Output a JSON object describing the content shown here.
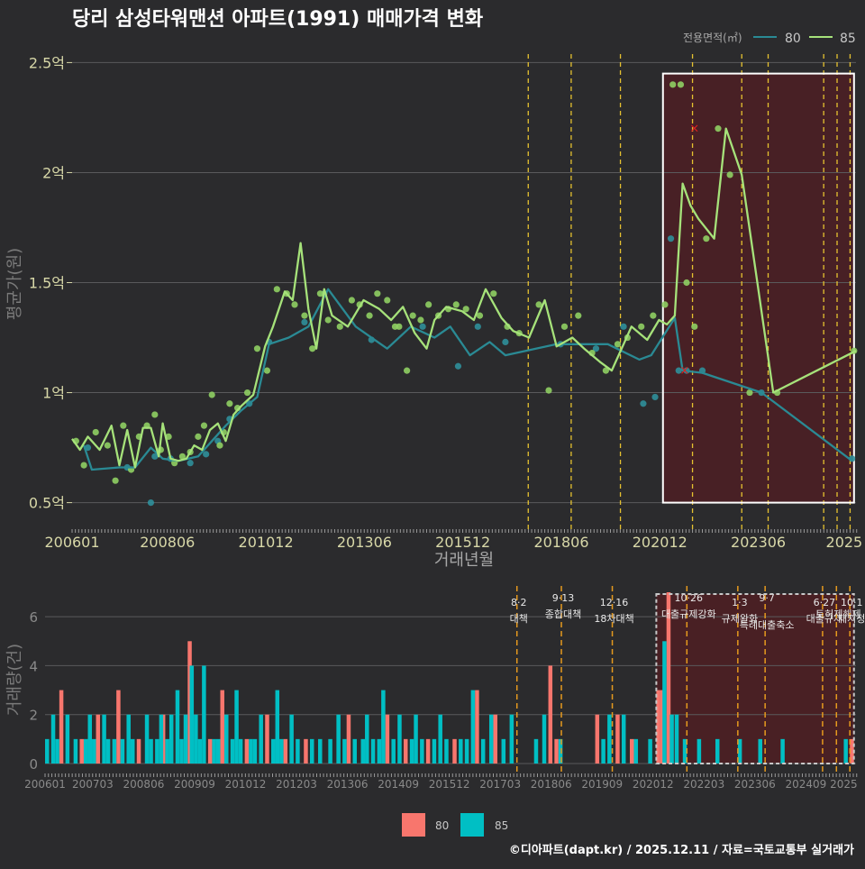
{
  "title": "당리 삼성타워맨션 아파트(1991) 매매가격 변화",
  "credit": "©디아파트(dapt.kr) / 2025.12.11 / 자료=국토교통부 실거래가",
  "colors": {
    "bg": "#2b2b2d",
    "series80_line": "#2a8a94",
    "series80_point": "#2f8f9a",
    "series85_line": "#a6e27a",
    "series85_point": "#8fcf63",
    "bar80": "#f8766d",
    "bar85": "#00bfc4",
    "policy": "#e6c230",
    "policy_bottom": "#e69a1e",
    "highlight_fill": "#4d1f24",
    "grid": "#5a5a5c",
    "axis_text": "#d8d8a8"
  },
  "chart_data": [
    {
      "type": "line",
      "name": "price-chart",
      "ylabel": "평균가(원)",
      "xlabel": "거래년월",
      "ylim": [
        0.4,
        2.6
      ],
      "xlim": [
        2006.0,
        2025.9
      ],
      "y_ticks": [
        {
          "v": 0.5,
          "label": "0.5억"
        },
        {
          "v": 1.0,
          "label": "1억"
        },
        {
          "v": 1.5,
          "label": "1.5억"
        },
        {
          "v": 2.0,
          "label": "2억"
        },
        {
          "v": 2.5,
          "label": "2.5억"
        }
      ],
      "x_ticks": [
        {
          "v": 2006.0,
          "label": "200601"
        },
        {
          "v": 2008.42,
          "label": "200806"
        },
        {
          "v": 2010.92,
          "label": "201012"
        },
        {
          "v": 2013.42,
          "label": "201306"
        },
        {
          "v": 2015.92,
          "label": "201512"
        },
        {
          "v": 2018.42,
          "label": "201806"
        },
        {
          "v": 2020.92,
          "label": "202012"
        },
        {
          "v": 2023.42,
          "label": "202306"
        },
        {
          "v": 2025.6,
          "label": "2025"
        }
      ],
      "legend": {
        "title": "전용면적(㎡)",
        "items": [
          "80",
          "85"
        ]
      },
      "policy_lines": [
        2017.58,
        2018.67,
        2019.92,
        2021.75,
        2023.0,
        2023.67,
        2025.08,
        2025.42,
        2025.75
      ],
      "highlight": {
        "x_start": 2021.0,
        "x_end": 2025.85,
        "y_low": 0.5,
        "y_high": 2.45
      },
      "series": [
        {
          "name": "80",
          "x": [
            2006.3,
            2006.5,
            2007.2,
            2007.6,
            2008.0,
            2008.3,
            2008.7,
            2009.2,
            2009.5,
            2009.9,
            2010.3,
            2010.7,
            2011.0,
            2011.5,
            2012.0,
            2012.5,
            2013.2,
            2014.0,
            2014.6,
            2015.2,
            2015.6,
            2016.1,
            2016.6,
            2017.0,
            2018.3,
            2019.6,
            2020.4,
            2020.7,
            2021.3,
            2021.5,
            2022.0,
            2023.5,
            2025.8
          ],
          "y": [
            0.76,
            0.65,
            0.66,
            0.66,
            0.75,
            0.7,
            0.69,
            0.71,
            0.77,
            0.85,
            0.92,
            0.98,
            1.22,
            1.25,
            1.3,
            1.47,
            1.3,
            1.2,
            1.3,
            1.25,
            1.3,
            1.17,
            1.23,
            1.17,
            1.22,
            1.22,
            1.15,
            1.17,
            1.34,
            1.1,
            1.09,
            1.0,
            0.69
          ]
        },
        {
          "name": "85",
          "x": [
            2006.0,
            2006.2,
            2006.4,
            2006.7,
            2007.0,
            2007.2,
            2007.4,
            2007.6,
            2007.8,
            2008.0,
            2008.2,
            2008.3,
            2008.5,
            2008.7,
            2008.9,
            2009.1,
            2009.3,
            2009.5,
            2009.7,
            2009.9,
            2010.1,
            2010.3,
            2010.6,
            2010.9,
            2011.1,
            2011.4,
            2011.6,
            2011.8,
            2012.0,
            2012.2,
            2012.4,
            2012.6,
            2013.0,
            2013.4,
            2013.8,
            2014.1,
            2014.4,
            2014.7,
            2015.0,
            2015.2,
            2015.5,
            2015.9,
            2016.2,
            2016.5,
            2016.9,
            2017.2,
            2017.6,
            2018.0,
            2018.3,
            2018.7,
            2019.0,
            2019.4,
            2019.7,
            2020.0,
            2020.2,
            2020.6,
            2020.9,
            2021.1,
            2021.3,
            2021.5,
            2021.7,
            2021.9,
            2022.3,
            2022.6,
            2023.0,
            2023.8,
            2025.9
          ],
          "y": [
            0.79,
            0.74,
            0.8,
            0.74,
            0.85,
            0.67,
            0.83,
            0.66,
            0.84,
            0.84,
            0.71,
            0.86,
            0.7,
            0.69,
            0.7,
            0.76,
            0.74,
            0.83,
            0.86,
            0.78,
            0.9,
            0.94,
            0.99,
            1.21,
            1.3,
            1.46,
            1.42,
            1.68,
            1.38,
            1.2,
            1.47,
            1.35,
            1.3,
            1.42,
            1.38,
            1.33,
            1.39,
            1.27,
            1.2,
            1.33,
            1.39,
            1.37,
            1.33,
            1.47,
            1.34,
            1.28,
            1.25,
            1.42,
            1.21,
            1.25,
            1.2,
            1.14,
            1.1,
            1.22,
            1.3,
            1.24,
            1.33,
            1.31,
            1.35,
            1.95,
            1.85,
            1.79,
            1.7,
            2.2,
            1.99,
            1.0,
            1.19
          ]
        }
      ],
      "scatter_80": {
        "x": [
          2006.4,
          2007.4,
          2008.1,
          2008.5,
          2009.0,
          2009.4,
          2009.7,
          2010.0,
          2010.5,
          2011.0,
          2011.9,
          2012.4,
          2013.6,
          2014.9,
          2015.8,
          2016.3,
          2017.0,
          2018.4,
          2019.3,
          2020.0,
          2020.5,
          2020.8,
          2021.2,
          2021.4,
          2021.6,
          2022.0,
          2023.5,
          2025.8,
          2008.0
        ],
        "y": [
          0.75,
          0.66,
          0.71,
          0.7,
          0.68,
          0.72,
          0.78,
          0.88,
          0.95,
          1.23,
          1.32,
          1.45,
          1.24,
          1.3,
          1.12,
          1.3,
          1.23,
          1.22,
          1.2,
          1.3,
          0.95,
          0.98,
          1.7,
          1.1,
          1.1,
          1.1,
          1.0,
          0.7,
          0.5
        ]
      },
      "scatter_85": {
        "x": [
          2006.1,
          2006.3,
          2006.6,
          2006.9,
          2007.1,
          2007.3,
          2007.5,
          2007.7,
          2007.9,
          2008.1,
          2008.25,
          2008.45,
          2008.6,
          2008.8,
          2009.0,
          2009.2,
          2009.35,
          2009.55,
          2009.75,
          2009.85,
          2010.0,
          2010.2,
          2010.45,
          2010.7,
          2010.95,
          2011.2,
          2011.45,
          2011.65,
          2011.9,
          2012.1,
          2012.3,
          2012.5,
          2012.8,
          2013.1,
          2013.3,
          2013.55,
          2013.75,
          2014.0,
          2014.2,
          2014.3,
          2014.5,
          2014.65,
          2014.85,
          2015.05,
          2015.3,
          2015.55,
          2015.75,
          2016.0,
          2016.35,
          2016.7,
          2017.05,
          2017.35,
          2017.85,
          2018.1,
          2018.5,
          2018.85,
          2019.2,
          2019.55,
          2019.85,
          2020.1,
          2020.45,
          2020.75,
          2021.05,
          2021.25,
          2021.45,
          2021.6,
          2021.8,
          2022.1,
          2022.4,
          2022.7,
          2023.2,
          2023.9,
          2025.85
        ],
        "y": [
          0.78,
          0.67,
          0.82,
          0.76,
          0.6,
          0.85,
          0.65,
          0.8,
          0.85,
          0.9,
          0.74,
          0.8,
          0.68,
          0.71,
          0.73,
          0.8,
          0.85,
          0.99,
          0.76,
          0.82,
          0.95,
          0.93,
          1.0,
          1.2,
          1.1,
          1.47,
          1.45,
          1.4,
          1.35,
          1.2,
          1.45,
          1.33,
          1.3,
          1.42,
          1.4,
          1.35,
          1.45,
          1.42,
          1.3,
          1.3,
          1.1,
          1.35,
          1.33,
          1.4,
          1.35,
          1.38,
          1.4,
          1.38,
          1.35,
          1.45,
          1.3,
          1.27,
          1.4,
          1.01,
          1.3,
          1.35,
          1.18,
          1.1,
          1.22,
          1.25,
          1.3,
          1.35,
          1.4,
          2.4,
          2.4,
          1.5,
          1.3,
          1.7,
          2.2,
          1.99,
          1.0,
          1.0,
          1.19
        ]
      },
      "x_marks": {
        "x": [
          2021.8,
          2021.55
        ],
        "y": [
          2.2,
          1.1
        ]
      }
    },
    {
      "type": "bar",
      "name": "volume-chart",
      "ylabel": "거래량(건)",
      "ylim": [
        0,
        7
      ],
      "xlim": [
        2006.0,
        2025.9
      ],
      "y_ticks": [
        0,
        2,
        4,
        6
      ],
      "x_ticks": [
        {
          "v": 2006.0,
          "label": "200601"
        },
        {
          "v": 2007.17,
          "label": "200703"
        },
        {
          "v": 2008.42,
          "label": "200806"
        },
        {
          "v": 2009.67,
          "label": "200909"
        },
        {
          "v": 2010.92,
          "label": "201012"
        },
        {
          "v": 2012.17,
          "label": "201203"
        },
        {
          "v": 2013.42,
          "label": "201306"
        },
        {
          "v": 2014.67,
          "label": "201409"
        },
        {
          "v": 2015.92,
          "label": "201512"
        },
        {
          "v": 2017.17,
          "label": "201703"
        },
        {
          "v": 2018.42,
          "label": "201806"
        },
        {
          "v": 2019.67,
          "label": "201909"
        },
        {
          "v": 2020.92,
          "label": "202012"
        },
        {
          "v": 2022.17,
          "label": "202203"
        },
        {
          "v": 2023.42,
          "label": "202306"
        },
        {
          "v": 2024.67,
          "label": "202409"
        },
        {
          "v": 2025.6,
          "label": "2025"
        }
      ],
      "legend": [
        "80",
        "85"
      ],
      "policies": [
        {
          "x": 2017.58,
          "date": "8·2",
          "name": "대책"
        },
        {
          "x": 2018.67,
          "date": "9·13",
          "name": "종합대책"
        },
        {
          "x": 2019.92,
          "date": "12·16",
          "name": "18차대책"
        },
        {
          "x": 2021.75,
          "date": "10·26",
          "name": "대출규제강화"
        },
        {
          "x": 2023.0,
          "date": "1·3",
          "name": "규제완화"
        },
        {
          "x": 2023.67,
          "date": "9·7",
          "name": "특례대출축소"
        },
        {
          "x": 2025.08,
          "date": "6·27",
          "name": "대출규제"
        },
        {
          "x": 2025.42,
          "date": "",
          "name": "토허제해제"
        },
        {
          "x": 2025.75,
          "date": "10·1",
          "name": "재지정"
        }
      ],
      "highlight": {
        "x_start": 2021.0,
        "x_end": 2025.85,
        "y_top": 7
      },
      "bars_80": {
        "x": [
          2006.4,
          2006.9,
          2007.3,
          2007.8,
          2008.3,
          2008.9,
          2009.55,
          2010.05,
          2010.35,
          2010.95,
          2011.45,
          2011.9,
          2012.4,
          2013.45,
          2014.4,
          2014.85,
          2015.4,
          2016.05,
          2016.6,
          2017.05,
          2018.4,
          2018.55,
          2019.55,
          2020.05,
          2020.4,
          2021.05,
          2021.15,
          2021.3,
          2025.8
        ],
        "y": [
          3,
          1,
          2,
          3,
          1,
          2,
          5,
          1,
          3,
          1,
          2,
          1,
          1,
          2,
          2,
          1,
          1,
          1,
          3,
          2,
          4,
          1,
          2,
          2,
          1,
          3,
          3,
          7,
          1
        ]
      },
      "bars_85": {
        "x": [
          2006.05,
          2006.2,
          2006.3,
          2006.55,
          2006.75,
          2007.0,
          2007.1,
          2007.2,
          2007.45,
          2007.55,
          2007.7,
          2007.9,
          2008.05,
          2008.15,
          2008.5,
          2008.6,
          2008.75,
          2008.85,
          2009.0,
          2009.1,
          2009.25,
          2009.35,
          2009.45,
          2009.6,
          2009.7,
          2009.8,
          2009.9,
          2010.15,
          2010.25,
          2010.45,
          2010.6,
          2010.7,
          2010.8,
          2011.05,
          2011.15,
          2011.3,
          2011.6,
          2011.7,
          2011.8,
          2012.05,
          2012.2,
          2012.55,
          2012.75,
          2013.0,
          2013.2,
          2013.35,
          2013.6,
          2013.8,
          2013.9,
          2014.05,
          2014.2,
          2014.3,
          2014.55,
          2014.7,
          2015.0,
          2015.1,
          2015.25,
          2015.55,
          2015.7,
          2015.85,
          2016.2,
          2016.35,
          2016.5,
          2016.75,
          2016.95,
          2017.25,
          2017.45,
          2018.05,
          2018.25,
          2018.65,
          2019.7,
          2019.85,
          2020.2,
          2020.5,
          2020.85,
          2021.2,
          2021.38,
          2021.5,
          2021.7,
          2022.05,
          2022.5,
          2023.05,
          2023.55,
          2024.1,
          2025.65
        ],
        "y": [
          1,
          2,
          1,
          2,
          1,
          1,
          2,
          1,
          2,
          1,
          1,
          1,
          2,
          1,
          2,
          1,
          1,
          2,
          1,
          2,
          3,
          1,
          2,
          4,
          2,
          1,
          4,
          1,
          1,
          2,
          1,
          3,
          1,
          1,
          1,
          2,
          1,
          3,
          1,
          2,
          1,
          1,
          1,
          1,
          2,
          1,
          1,
          1,
          2,
          1,
          1,
          3,
          1,
          2,
          1,
          2,
          1,
          1,
          2,
          1,
          1,
          1,
          3,
          1,
          2,
          1,
          2,
          1,
          2,
          1,
          1,
          2,
          2,
          1,
          1,
          5,
          2,
          2,
          1,
          1,
          1,
          1,
          1,
          1,
          1
        ]
      }
    }
  ]
}
